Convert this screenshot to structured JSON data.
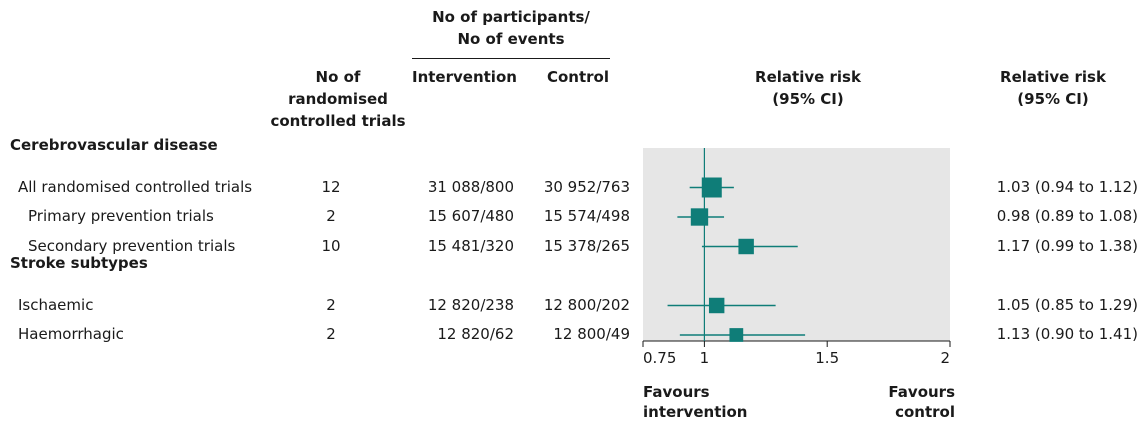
{
  "headers": {
    "participants_group": [
      "No of participants/",
      "No of events"
    ],
    "trials": [
      "No of",
      "randomised",
      "controlled trials"
    ],
    "intervention": "Intervention",
    "control": "Control",
    "rr_plot": [
      "Relative risk",
      "(95% CI)"
    ],
    "rr_text": [
      "Relative risk",
      "(95% CI)"
    ]
  },
  "footer": {
    "favours_left": [
      "Favours",
      "intervention"
    ],
    "favours_right": [
      "Favours",
      "control"
    ]
  },
  "chart_data": {
    "type": "forest",
    "xlim": [
      0.75,
      2
    ],
    "reference_line": 1,
    "ticks": [
      {
        "value": 0.75,
        "label": "0.75"
      },
      {
        "value": 1,
        "label": "1"
      },
      {
        "value": 1.5,
        "label": "1.5"
      },
      {
        "value": 2,
        "label": "2"
      }
    ],
    "panel_color": "#e6e6e6",
    "marker_color": "#0f7d78",
    "rows": [
      {
        "kind": "section",
        "label": "Cerebrovascular disease"
      },
      {
        "kind": "study",
        "label": "All randomised controlled trials",
        "indent": 1,
        "trials": "12",
        "intervention": "31 088/800",
        "control": "30 952/763",
        "rr": 1.03,
        "ci": [
          0.94,
          1.12
        ],
        "rr_text": "1.03 (0.94 to 1.12)",
        "weight": 1.0
      },
      {
        "kind": "study",
        "label": "Primary prevention trials",
        "indent": 2,
        "trials": "2",
        "intervention": "15 607/480",
        "control": "15 574/498",
        "rr": 0.98,
        "ci": [
          0.89,
          1.08
        ],
        "rr_text": "0.98 (0.89 to 1.08)",
        "weight": 0.78
      },
      {
        "kind": "study",
        "label": "Secondary prevention trials",
        "indent": 2,
        "trials": "10",
        "intervention": "15 481/320",
        "control": "15 378/265",
        "rr": 1.17,
        "ci": [
          0.99,
          1.38
        ],
        "rr_text": "1.17 (0.99 to 1.38)",
        "weight": 0.62
      },
      {
        "kind": "section",
        "label": "Stroke subtypes"
      },
      {
        "kind": "study",
        "label": "Ischaemic",
        "indent": 1,
        "trials": "2",
        "intervention": "12 820/238",
        "control": "12 800/202",
        "rr": 1.05,
        "ci": [
          0.85,
          1.29
        ],
        "rr_text": "1.05 (0.85 to 1.29)",
        "weight": 0.62
      },
      {
        "kind": "study",
        "label": "Haemorrhagic",
        "indent": 1,
        "trials": "2",
        "intervention": "12 820/62",
        "control": "12 800/49",
        "rr": 1.13,
        "ci": [
          0.9,
          1.41
        ],
        "rr_text": "1.13 (0.90 to 1.41)",
        "weight": 0.48
      }
    ]
  }
}
